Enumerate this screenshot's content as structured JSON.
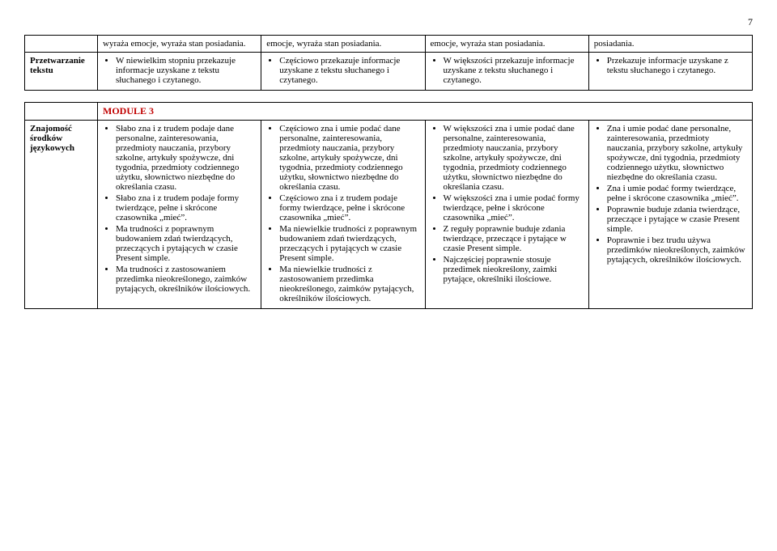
{
  "page_number": "7",
  "module_heading": "MODULE 3",
  "table1": {
    "row1": {
      "c1": "",
      "c2": [
        "wyraża emocje, wyraża stan posiadania."
      ],
      "c3": [
        "emocje, wyraża stan posiadania."
      ],
      "c4": [
        "emocje, wyraża stan posiadania."
      ],
      "c5": [
        "posiadania."
      ]
    },
    "row2": {
      "label": "Przetwarzanie tekstu",
      "c2": [
        "W niewielkim stopniu przekazuje informacje uzyskane z tekstu słuchanego i czytanego."
      ],
      "c3": [
        "Częściowo przekazuje informacje uzyskane z tekstu słuchanego i czytanego."
      ],
      "c4": [
        "W większości przekazuje informacje uzyskane z tekstu słuchanego i czytanego."
      ],
      "c5": [
        "Przekazuje informacje uzyskane z tekstu słuchanego i czytanego."
      ]
    }
  },
  "table2": {
    "row1": {
      "label": "Znajomość środków językowych",
      "c2": [
        "Słabo zna i z trudem podaje dane personalne, zainteresowania, przedmioty nauczania, przybory szkolne, artykuły spożywcze, dni tygodnia, przedmioty codziennego użytku, słownictwo niezbędne do określania czasu.",
        "Słabo zna i z trudem podaje formy twierdzące, pełne i skrócone czasownika „mieć”.",
        "Ma trudności z poprawnym budowaniem zdań twierdzących, przeczących i pytających w czasie Present simple.",
        "Ma trudności z zastosowaniem przedimka nieokreślonego, zaimków pytających, określników ilościowych."
      ],
      "c3": [
        "Częściowo zna i umie podać dane personalne, zainteresowania, przedmioty nauczania, przybory szkolne, artykuły spożywcze, dni tygodnia, przedmioty codziennego użytku, słownictwo niezbędne do określania czasu.",
        "Częściowo zna i z trudem podaje formy twierdzące, pełne i skrócone czasownika „mieć”.",
        "Ma niewielkie trudności z poprawnym budowaniem zdań twierdzących, przeczących i pytających w czasie Present simple.",
        "Ma niewielkie trudności z zastosowaniem przedimka nieokreślonego, zaimków pytających, określników ilościowych."
      ],
      "c4": [
        "W większości zna i umie podać dane personalne, zainteresowania, przedmioty nauczania, przybory szkolne, artykuły spożywcze, dni tygodnia, przedmioty codziennego użytku, słownictwo niezbędne do określania czasu.",
        "W większości zna i umie podać formy twierdzące, pełne i skrócone czasownika „mieć”.",
        "Z reguły poprawnie buduje zdania twierdzące, przeczące i pytające w czasie Present simple.",
        "Najczęściej poprawnie stosuje przedimek nieokreślony, zaimki pytające, określniki ilościowe."
      ],
      "c5": [
        "Zna i umie podać dane personalne, zainteresowania, przedmioty nauczania, przybory szkolne, artykuły spożywcze, dni tygodnia, przedmioty codziennego użytku, słownictwo niezbędne do określania czasu.",
        "Zna i umie podać formy twierdzące, pełne i skrócone czasownika „mieć”.",
        "Poprawnie buduje zdania twierdzące, przeczące i pytające w czasie Present simple.",
        "Poprawnie i bez trudu używa przedimków nieokreślonych, zaimków pytających, określników ilościowych."
      ]
    }
  }
}
